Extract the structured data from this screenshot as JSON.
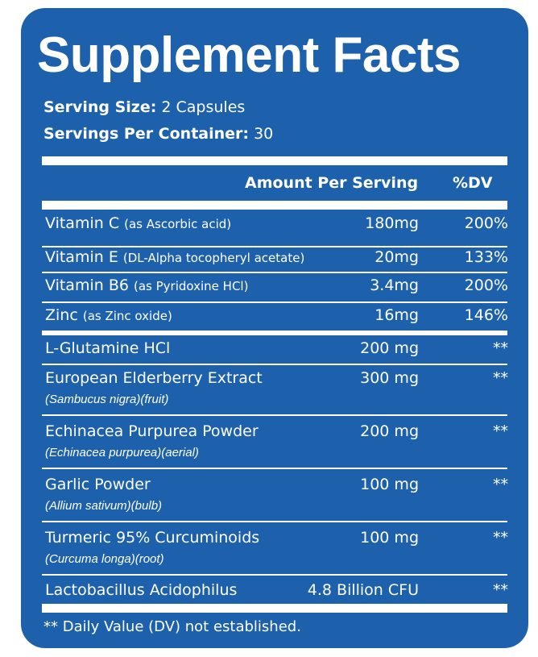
{
  "title": "Supplement Facts",
  "serving_size": {
    "label": "Serving Size:",
    "value": "2 Capsules"
  },
  "servings_per_container": {
    "label": "Servings Per Container:",
    "value": "30"
  },
  "header": {
    "amount": "Amount Per Serving",
    "dv": "%DV"
  },
  "vitamins": [
    {
      "name": "Vitamin C",
      "qualifier": "(as Ascorbic acid)",
      "amount": "180mg",
      "dv": "200%"
    },
    {
      "name": "Vitamin E",
      "qualifier": "(DL-Alpha tocopheryl acetate)",
      "amount": "20mg",
      "dv": "133%"
    },
    {
      "name": "Vitamin B6",
      "qualifier": "(as Pyridoxine HCl)",
      "amount": "3.4mg",
      "dv": "200%"
    },
    {
      "name": "Zinc",
      "qualifier": "(as Zinc oxide)",
      "amount": "16mg",
      "dv": "146%"
    }
  ],
  "blend": [
    {
      "name": "L-Glutamine HCl",
      "source": "",
      "amount": "200 mg",
      "dv": "**"
    },
    {
      "name": "European Elderberry Extract",
      "source": "(Sambucus nigra)(fruit)",
      "amount": "300 mg",
      "dv": "**"
    },
    {
      "name": "Echinacea Purpurea Powder",
      "source": "(Echinacea purpurea)(aerial)",
      "amount": "200 mg",
      "dv": "**"
    },
    {
      "name": "Garlic Powder",
      "source": "(Allium sativum)(bulb)",
      "amount": "100 mg",
      "dv": "**"
    },
    {
      "name": "Turmeric 95% Curcuminoids",
      "source": "(Curcuma longa)(root)",
      "amount": "100 mg",
      "dv": "**"
    },
    {
      "name": "Lactobacillus Acidophilus",
      "source": "",
      "amount": "4.8 Billion CFU",
      "dv": "**"
    }
  ],
  "footnote": "** Daily Value (DV) not established.",
  "colors": {
    "panel": "#1d61ad",
    "text": "#ffffff"
  }
}
